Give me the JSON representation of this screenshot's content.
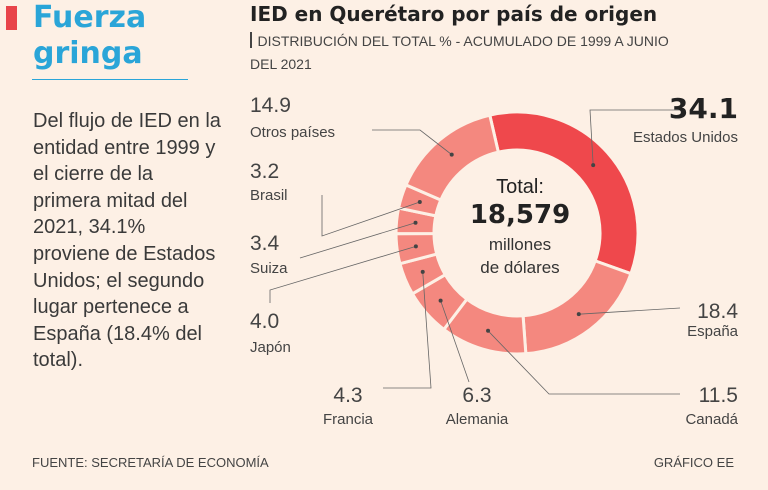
{
  "headline": {
    "line1": "Fuerza",
    "line2": "gringa"
  },
  "intro_text": "Del flujo de IED en la entidad entre 1999 y el cierre de la primera mitad del 2021, 34.1% proviene de Estados Unidos; el segundo lugar pertenece a España (18.4% del total).",
  "source": "FUENTE: SECRETARÍA DE ECONOMÍA",
  "credit": "GRÁFICO EE",
  "colors": {
    "accent": "#e8444a",
    "headline": "#2aa5d8",
    "main_slice": "#ef484c",
    "other_slices": "#f4887f",
    "background": "#fdf0e5"
  },
  "chart_data": {
    "type": "pie",
    "title": "IED en Querétaro por país de origen",
    "subtitle": "Distribución del total % - acumulado de 1999 a junio del 2021",
    "center": {
      "label": "Total:",
      "value": "18,579",
      "unit_line1": "millones",
      "unit_line2": "de dólares"
    },
    "slices": [
      {
        "label": "Estados Unidos",
        "value": 34.1,
        "display": "34.1"
      },
      {
        "label": "España",
        "value": 18.4,
        "display": "18.4"
      },
      {
        "label": "Canadá",
        "value": 11.5,
        "display": "11.5"
      },
      {
        "label": "Alemania",
        "value": 6.3,
        "display": "6.3"
      },
      {
        "label": "Francia",
        "value": 4.3,
        "display": "4.3"
      },
      {
        "label": "Japón",
        "value": 4.0,
        "display": "4.0"
      },
      {
        "label": "Suiza",
        "value": 3.4,
        "display": "3.4"
      },
      {
        "label": "Brasil",
        "value": 3.2,
        "display": "3.2"
      },
      {
        "label": "Otros países",
        "value": 14.9,
        "display": "14.9"
      }
    ]
  }
}
